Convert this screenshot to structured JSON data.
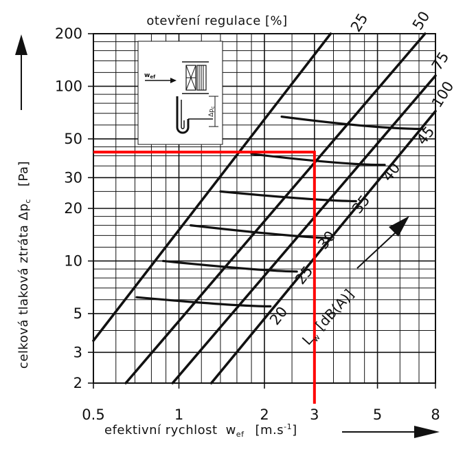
{
  "chart_data": {
    "type": "line",
    "title": "otevření regulace [%]",
    "xlabel": "efektivní rychlost",
    "xlabel_symbol": "w",
    "xlabel_symbol_sub": "ef",
    "xlabel_unit": "[m.s",
    "xlabel_unit_sup": "-1",
    "xlabel_unit_end": "]",
    "ylabel": "celková tlaková ztráta Δp",
    "ylabel_sub": "c",
    "ylabel_unit": "[Pa]",
    "x_scale": "log",
    "y_scale": "log",
    "xlim": [
      0.5,
      8
    ],
    "ylim": [
      2,
      200
    ],
    "x_ticks": [
      0.5,
      1,
      2,
      3,
      5,
      8
    ],
    "x_tick_labels": [
      "0.5",
      "1",
      "2",
      "3",
      "5",
      "8"
    ],
    "y_ticks": [
      2,
      3,
      5,
      10,
      20,
      30,
      50,
      100,
      200
    ],
    "y_tick_labels": [
      "2",
      "3",
      "5",
      "10",
      "20",
      "30",
      "50",
      "100",
      "200"
    ],
    "grid": true,
    "series": [
      {
        "name": "25",
        "x": [
          0.5,
          3.42
        ],
        "y": [
          3.5,
          200
        ]
      },
      {
        "name": "50",
        "x": [
          0.65,
          7.35
        ],
        "y": [
          2.0,
          200
        ]
      },
      {
        "name": "75",
        "x": [
          0.95,
          8.0
        ],
        "y": [
          2.0,
          115
        ]
      },
      {
        "name": "100",
        "x": [
          1.3,
          8.0
        ],
        "y": [
          2.0,
          72
        ]
      }
    ],
    "noise_series": [
      {
        "name": "20",
        "x": [
          0.71,
          1.6,
          2.1
        ],
        "y": [
          6.2,
          5.6,
          5.5
        ]
      },
      {
        "name": "25",
        "x": [
          0.88,
          2.0,
          2.6
        ],
        "y": [
          10.0,
          8.9,
          8.7
        ]
      },
      {
        "name": "30",
        "x": [
          1.1,
          2.5,
          3.4
        ],
        "y": [
          16.0,
          14.0,
          13.5
        ]
      },
      {
        "name": "35",
        "x": [
          1.4,
          3.1,
          4.2
        ],
        "y": [
          25.0,
          22.5,
          22.0
        ]
      },
      {
        "name": "40",
        "x": [
          1.8,
          3.9,
          5.3
        ],
        "y": [
          41.0,
          36.0,
          35.5
        ]
      },
      {
        "name": "45",
        "x": [
          2.3,
          5.0,
          7.2
        ],
        "y": [
          67.0,
          58.0,
          57.0
        ]
      }
    ],
    "noise_axis_label": "L",
    "noise_axis_label_sub": "w",
    "noise_axis_unit": "[dB(A)]",
    "highlight": {
      "x": 3.0,
      "y": 42,
      "color": "#ff0000"
    },
    "line_color": "#111111",
    "grid_color": "#111111"
  }
}
